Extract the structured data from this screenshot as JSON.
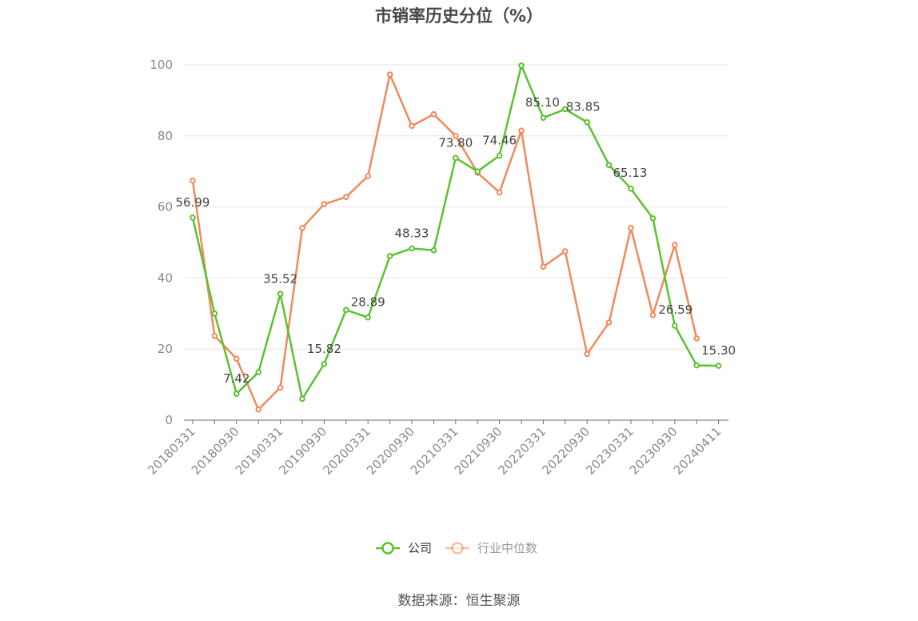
{
  "chart_data": {
    "type": "line",
    "title": "市销率历史分位（%）",
    "ylim": [
      0,
      100
    ],
    "yticks": [
      0,
      20,
      40,
      60,
      80,
      100
    ],
    "x": [
      "20180331",
      "20180630",
      "20180930",
      "20181231",
      "20190331",
      "20190630",
      "20190930",
      "20191231",
      "20200331",
      "20200630",
      "20200930",
      "20201231",
      "20210331",
      "20210630",
      "20210930",
      "20211231",
      "20220331",
      "20220630",
      "20220930",
      "20221231",
      "20230331",
      "20230630",
      "20230930",
      "20231231",
      "20240411"
    ],
    "xtick_labels": [
      "20180331",
      "20180930",
      "20190331",
      "20190930",
      "20200331",
      "20200930",
      "20210331",
      "20210930",
      "20220331",
      "20220930",
      "20230331",
      "20230930",
      "20240411"
    ],
    "grid": true,
    "legend": "bottom",
    "series": [
      {
        "name": "公司",
        "color": "#5ac22e",
        "values": [
          56.99,
          30.0,
          7.42,
          13.5,
          35.52,
          6.0,
          15.82,
          31.0,
          28.89,
          46.2,
          48.33,
          47.8,
          73.8,
          70.0,
          74.46,
          99.8,
          85.1,
          87.5,
          83.85,
          71.8,
          65.13,
          56.8,
          26.59,
          15.4,
          15.3
        ],
        "labels": {
          "0": "56.99",
          "2": "7.42",
          "4": "35.52",
          "6": "15.82",
          "8": "28.89",
          "10": "48.33",
          "12": "73.80",
          "14": "74.46",
          "16": "85.10",
          "18": "83.85",
          "20": "65.13",
          "22": "26.59",
          "24": "15.30"
        }
      },
      {
        "name": "行业中位数",
        "color": "#f08a5a",
        "values": [
          67.4,
          23.7,
          17.3,
          3.0,
          9.2,
          54.1,
          60.8,
          62.8,
          68.7,
          97.3,
          82.8,
          86.1,
          80.0,
          69.6,
          64.1,
          81.5,
          43.2,
          47.5,
          18.6,
          27.5,
          54.1,
          29.6,
          49.3,
          23.0,
          null
        ]
      }
    ]
  },
  "source": "数据来源：恒生聚源"
}
